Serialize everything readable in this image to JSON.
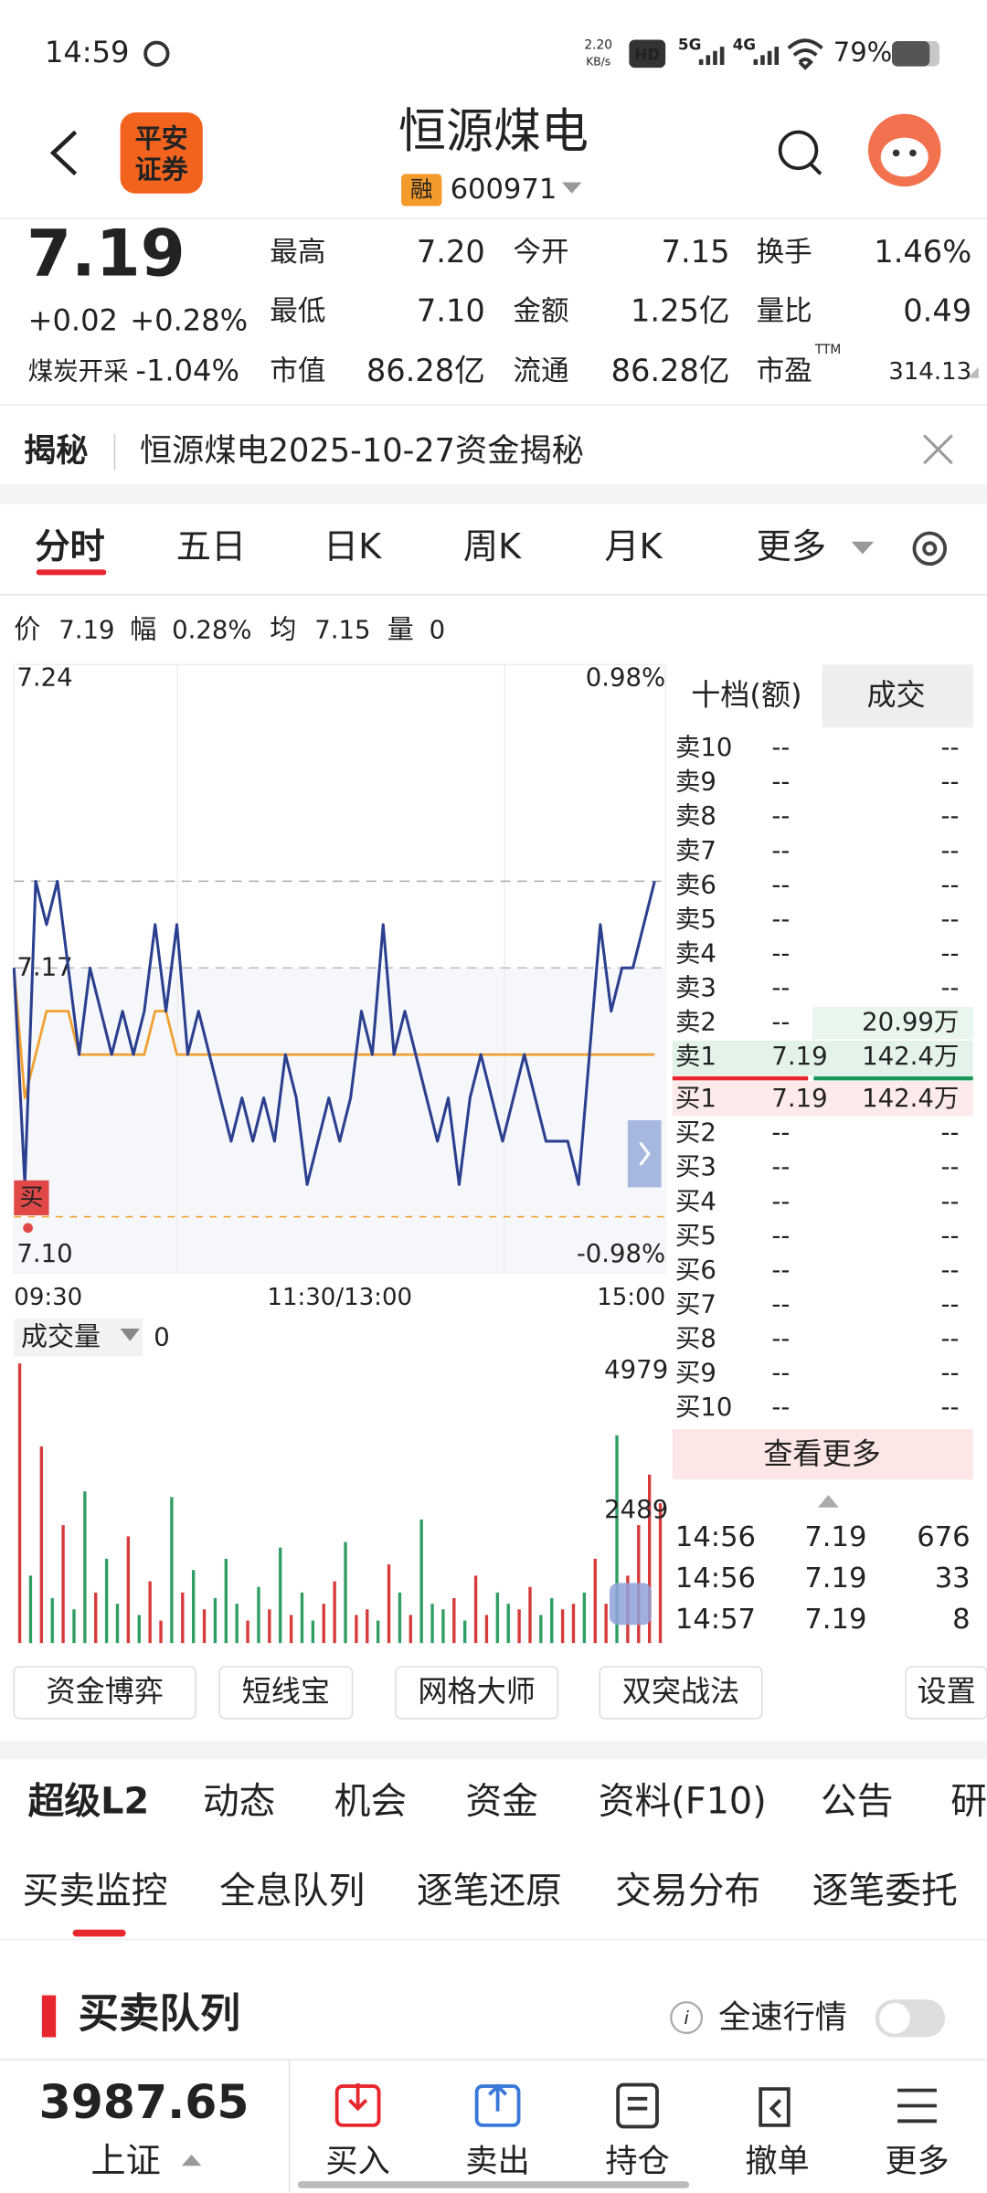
{
  "status_bar": {
    "time": "14:59",
    "net_speed": "2.20",
    "net_unit": "KB/s",
    "hd": "HD",
    "sig1": "5G",
    "sig2": "4G",
    "battery": "79%"
  },
  "header": {
    "logo_line1": "平安",
    "logo_line2": "证券",
    "title": "恒源煤电",
    "badge": "融",
    "code": "600971"
  },
  "quote": {
    "price": "7.19",
    "change": "+0.02",
    "change_pct": "+0.28%",
    "sector": "煤炭开采",
    "sector_pct": "-1.04%",
    "pe_sup": "TTM",
    "stats": [
      {
        "label": "最高",
        "value": "7.20",
        "color": "#e8262d"
      },
      {
        "label": "今开",
        "value": "7.15",
        "color": "#1a9a5a"
      },
      {
        "label": "换手",
        "value": "1.46%",
        "color": "#222222"
      },
      {
        "label": "最低",
        "value": "7.10",
        "color": "#1a9a5a"
      },
      {
        "label": "金额",
        "value": "1.25亿",
        "color": "#222222"
      },
      {
        "label": "量比",
        "value": "0.49",
        "color": "#222222"
      },
      {
        "label": "市值",
        "value": "86.28亿",
        "color": "#222222"
      },
      {
        "label": "流通",
        "value": "86.28亿",
        "color": "#222222"
      },
      {
        "label": "市盈",
        "value": "314.13",
        "color": "#222222"
      }
    ]
  },
  "notice": {
    "tag": "揭秘",
    "text": "恒源煤电2025-10-27资金揭秘"
  },
  "chart_tabs": [
    "分时",
    "五日",
    "日K",
    "周K",
    "月K",
    "更多"
  ],
  "info_line": [
    {
      "label": "价",
      "value": "7.19",
      "color": "#e8262d"
    },
    {
      "label": "幅",
      "value": "0.28%",
      "color": "#e8262d"
    },
    {
      "label": "均",
      "value": "7.15",
      "color": "#1a9a5a"
    },
    {
      "label": "量",
      "value": "0",
      "color": "#222222"
    }
  ],
  "chart_data": [
    {
      "type": "line",
      "marker_label": "买",
      "xlim": [
        0,
        240
      ],
      "xticks": [
        {
          "value": 0,
          "label": "09:30"
        },
        {
          "value": 120,
          "label": "11:30/13:00"
        },
        {
          "value": 240,
          "label": "15:00"
        }
      ],
      "ylim": [
        7.1,
        7.24
      ],
      "yticks": [
        {
          "value": 7.24,
          "label": "7.24"
        },
        {
          "value": 7.17,
          "label": "7.17"
        },
        {
          "value": 7.1,
          "label": "7.10"
        }
      ],
      "y2lim": [
        -0.98,
        0.98
      ],
      "y2ticks": [
        {
          "value": 0.98,
          "label": "0.98%"
        },
        {
          "value": -0.98,
          "label": "-0.98%"
        }
      ],
      "x": [
        0,
        4,
        8,
        12,
        16,
        20,
        24,
        28,
        32,
        36,
        40,
        44,
        48,
        52,
        56,
        60,
        64,
        68,
        72,
        76,
        80,
        84,
        88,
        92,
        96,
        100,
        104,
        108,
        112,
        116,
        120,
        124,
        128,
        132,
        136,
        140,
        144,
        148,
        152,
        156,
        160,
        164,
        168,
        172,
        176,
        180,
        184,
        188,
        192,
        196,
        200,
        204,
        208,
        212,
        216,
        220,
        224,
        228,
        232,
        236
      ],
      "series": [
        {
          "color": "#2b3f8f",
          "values": [
            7.17,
            7.12,
            7.19,
            7.18,
            7.19,
            7.17,
            7.15,
            7.17,
            7.16,
            7.15,
            7.16,
            7.15,
            7.16,
            7.18,
            7.16,
            7.18,
            7.15,
            7.16,
            7.15,
            7.14,
            7.13,
            7.14,
            7.13,
            7.14,
            7.13,
            7.15,
            7.14,
            7.12,
            7.13,
            7.14,
            7.13,
            7.14,
            7.16,
            7.15,
            7.18,
            7.15,
            7.16,
            7.15,
            7.14,
            7.13,
            7.14,
            7.12,
            7.14,
            7.15,
            7.14,
            7.13,
            7.14,
            7.15,
            7.14,
            7.13,
            7.13,
            7.13,
            7.12,
            7.15,
            7.18,
            7.16,
            7.17,
            7.17,
            7.18,
            7.19
          ]
        },
        {
          "color": "#f0a030",
          "values": [
            7.17,
            7.14,
            7.15,
            7.16,
            7.16,
            7.16,
            7.15,
            7.15,
            7.15,
            7.15,
            7.15,
            7.15,
            7.15,
            7.16,
            7.16,
            7.15,
            7.15,
            7.15,
            7.15,
            7.15,
            7.15,
            7.15,
            7.15,
            7.15,
            7.15,
            7.15,
            7.15,
            7.15,
            7.15,
            7.15,
            7.15,
            7.15,
            7.15,
            7.15,
            7.15,
            7.15,
            7.15,
            7.15,
            7.15,
            7.15,
            7.15,
            7.15,
            7.15,
            7.15,
            7.15,
            7.15,
            7.15,
            7.15,
            7.15,
            7.15,
            7.15,
            7.15,
            7.15,
            7.15,
            7.15,
            7.15,
            7.15,
            7.15,
            7.15,
            7.15
          ]
        }
      ]
    },
    {
      "type": "bar",
      "title": "成交量",
      "current_value": "0",
      "ylim": [
        0,
        4979
      ],
      "yticks": [
        2489,
        4979
      ],
      "x": [
        0,
        4,
        8,
        12,
        16,
        20,
        24,
        28,
        32,
        36,
        40,
        44,
        48,
        52,
        56,
        60,
        64,
        68,
        72,
        76,
        80,
        84,
        88,
        92,
        96,
        100,
        104,
        108,
        112,
        116,
        120,
        124,
        128,
        132,
        136,
        140,
        144,
        148,
        152,
        156,
        160,
        164,
        168,
        172,
        176,
        180,
        184,
        188,
        192,
        196,
        200,
        204,
        208,
        212,
        216,
        220,
        224,
        228,
        232,
        236
      ],
      "up_color": "#d63a3a",
      "down_color": "#2f9e63",
      "values": [
        4979,
        1200,
        3500,
        800,
        2100,
        600,
        2700,
        900,
        1500,
        700,
        1900,
        500,
        1100,
        400,
        2600,
        900,
        1300,
        600,
        800,
        1500,
        700,
        400,
        1000,
        600,
        1700,
        500,
        900,
        400,
        700,
        1100,
        1800,
        500,
        600,
        400,
        1400,
        900,
        500,
        2200,
        700,
        600,
        800,
        400,
        1200,
        500,
        900,
        700,
        600,
        1000,
        500,
        800,
        600,
        700,
        900,
        1500,
        700,
        3700,
        1200,
        2100,
        3000,
        2489
      ]
    }
  ],
  "order_book": {
    "tabs": [
      "十档(额)",
      "成交"
    ],
    "asks": [
      [
        "卖10",
        "--",
        "--"
      ],
      [
        "卖9",
        "--",
        "--"
      ],
      [
        "卖8",
        "--",
        "--"
      ],
      [
        "卖7",
        "--",
        "--"
      ],
      [
        "卖6",
        "--",
        "--"
      ],
      [
        "卖5",
        "--",
        "--"
      ],
      [
        "卖4",
        "--",
        "--"
      ],
      [
        "卖3",
        "--",
        "--"
      ],
      [
        "卖2",
        "--",
        "20.99万"
      ],
      [
        "卖1",
        "7.19",
        "142.4万"
      ]
    ],
    "bids": [
      [
        "买1",
        "7.19",
        "142.4万"
      ],
      [
        "买2",
        "--",
        "--"
      ],
      [
        "买3",
        "--",
        "--"
      ],
      [
        "买4",
        "--",
        "--"
      ],
      [
        "买5",
        "--",
        "--"
      ],
      [
        "买6",
        "--",
        "--"
      ],
      [
        "买7",
        "--",
        "--"
      ],
      [
        "买8",
        "--",
        "--"
      ],
      [
        "买9",
        "--",
        "--"
      ],
      [
        "买10",
        "--",
        "--"
      ]
    ],
    "more": "查看更多",
    "trades": [
      [
        "14:56",
        "7.19",
        "676"
      ],
      [
        "14:56",
        "7.19",
        "33"
      ],
      [
        "14:57",
        "7.19",
        "8"
      ]
    ]
  },
  "tools": [
    "资金博弈",
    "短线宝",
    "网格大师",
    "双突战法"
  ],
  "settings": "设置",
  "section_tabs": [
    "超级L2",
    "动态",
    "机会",
    "资金",
    "资料(F10)",
    "公告",
    "研"
  ],
  "sub_tabs": [
    "买卖监控",
    "全息队列",
    "逐笔还原",
    "交易分布",
    "逐笔委托"
  ],
  "queue": {
    "title": "买卖队列",
    "toggle": "全速行情"
  },
  "bottom": {
    "index_value": "3987.65",
    "index_name": "上证",
    "nav": [
      "买入",
      "卖出",
      "持仓",
      "撤单",
      "更多"
    ]
  }
}
